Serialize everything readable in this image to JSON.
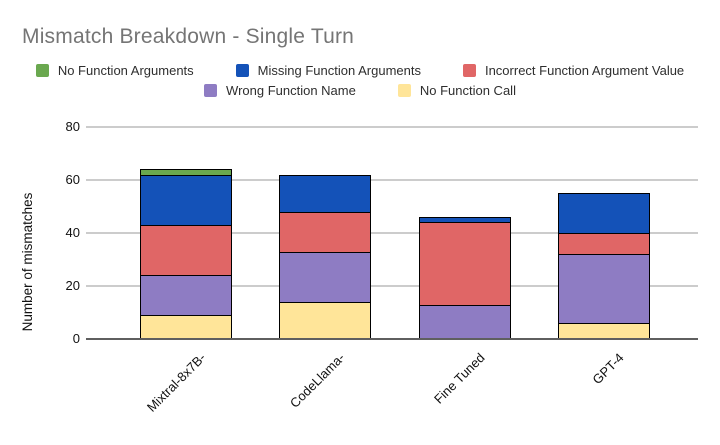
{
  "title": "Mismatch Breakdown - Single Turn",
  "colors": {
    "background": "#ffffff",
    "title_text": "#757575",
    "axis_line": "#5f5f5f",
    "gridline": "#cccccc",
    "tick_text": "#111111",
    "segment_border": "#000000"
  },
  "chart_data": {
    "type": "bar",
    "stacked": true,
    "title": "Mismatch Breakdown - Single Turn",
    "xlabel": "",
    "ylabel": "Number of mismatches",
    "categories": [
      "Mixtral-8x7B-",
      "CodeLlama-",
      "Fine Tuned",
      "GPT-4"
    ],
    "series": [
      {
        "name": "No Function Call",
        "color": "#ffe599",
        "values": [
          9,
          14,
          0,
          6
        ]
      },
      {
        "name": "Wrong Function Name",
        "color": "#8e7cc3",
        "values": [
          15,
          19,
          13,
          26
        ]
      },
      {
        "name": "Incorrect Function Argument Value",
        "color": "#e06666",
        "values": [
          19,
          15,
          31,
          8
        ]
      },
      {
        "name": "Missing Function Arguments",
        "color": "#1452b8",
        "values": [
          19,
          14,
          2,
          15
        ]
      },
      {
        "name": "No Function Arguments",
        "color": "#6aa84f",
        "values": [
          2,
          0,
          0,
          0
        ]
      }
    ],
    "totals": [
      64,
      62,
      46,
      55
    ],
    "ylim": [
      0,
      80
    ],
    "yticks": [
      0,
      20,
      40,
      60,
      80
    ],
    "grid": true,
    "legend_position": "top",
    "legend_rows": [
      [
        "No Function Arguments",
        "Missing Function Arguments",
        "Incorrect Function Argument Value"
      ],
      [
        "Wrong Function Name",
        "No Function Call"
      ]
    ]
  }
}
